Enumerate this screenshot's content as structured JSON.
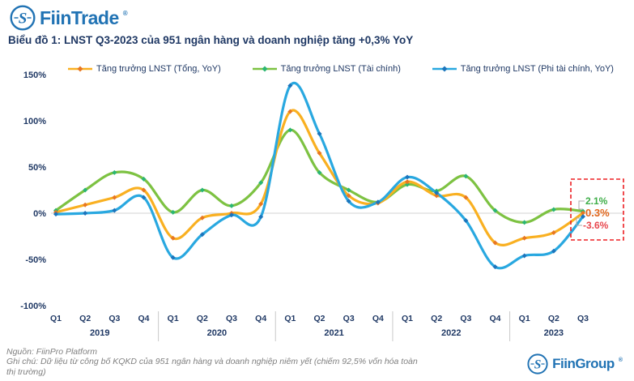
{
  "header": {
    "logo_text": "FiinTrade",
    "registered_mark": "®"
  },
  "title": "Biểu đồ 1: LNST Q3-2023 của 951 ngân hàng và doanh nghiệp tăng +0,3% YoY",
  "chart_data": {
    "type": "line",
    "title": "Biểu đồ 1: LNST Q3-2023 của 951 ngân hàng và doanh nghiệp tăng +0,3% YoY",
    "x_axis": {
      "year_groups": [
        {
          "year": "2019",
          "quarters": [
            "Q1",
            "Q2",
            "Q3",
            "Q4"
          ]
        },
        {
          "year": "2020",
          "quarters": [
            "Q1",
            "Q2",
            "Q3",
            "Q4"
          ]
        },
        {
          "year": "2021",
          "quarters": [
            "Q1",
            "Q2",
            "Q3",
            "Q4"
          ]
        },
        {
          "year": "2022",
          "quarters": [
            "Q1",
            "Q2",
            "Q3",
            "Q4"
          ]
        },
        {
          "year": "2023",
          "quarters": [
            "Q1",
            "Q2",
            "Q3"
          ]
        }
      ]
    },
    "ylabel": "",
    "xlabel": "",
    "ylim": [
      -100,
      150
    ],
    "yticks": [
      {
        "value": 150,
        "label": "150%"
      },
      {
        "value": 100,
        "label": "100%"
      },
      {
        "value": 50,
        "label": "50%"
      },
      {
        "value": 0,
        "label": "0%"
      },
      {
        "value": -50,
        "label": "-50%"
      },
      {
        "value": -100,
        "label": "-100%"
      }
    ],
    "grid": "horizontal zero line only",
    "legend_position": "top",
    "series": [
      {
        "name": "Tăng trưởng LNST (Tổng, YoY)",
        "color": "#F9B021",
        "marker_color": "#E87722",
        "values": [
          1,
          9,
          17,
          25,
          -27,
          -5,
          0,
          10,
          110,
          65,
          19,
          11,
          34,
          19,
          17,
          -32,
          -27,
          -21,
          0.3
        ]
      },
      {
        "name": "Tăng trưởng LNST (Tài chính)",
        "color": "#7DC242",
        "marker_color": "#2BB673",
        "values": [
          3,
          25,
          44,
          37,
          1,
          25,
          8,
          33,
          90,
          44,
          25,
          12,
          31,
          24,
          40,
          3,
          -10,
          4,
          2.1
        ]
      },
      {
        "name": "Tăng trưởng LNST (Phi tài chính, YoY)",
        "color": "#29A8E0",
        "marker_color": "#1C75BC",
        "values": [
          -1,
          0,
          3,
          17,
          -48,
          -23,
          -2,
          -4,
          138,
          86,
          13,
          12,
          39,
          22,
          -8,
          -58,
          -46,
          -41,
          -3.6
        ]
      }
    ],
    "annotation": {
      "box_color": "#ED2024",
      "connector_color": "#ABABAB",
      "labels": [
        {
          "text": "2.1%",
          "color": "#3FAE49"
        },
        {
          "text": "0.3%",
          "color": "#E0661B"
        },
        {
          "text": "-3.6%",
          "color": "#E8484F"
        }
      ]
    }
  },
  "footer": {
    "source": "Nguồn: FiinPro Platform",
    "note": "Ghi chú: Dữ liệu từ công bố KQKD của 951 ngân hàng và doanh nghiệp niêm yết (chiếm 92,5% vốn hóa toàn thị trường)",
    "logo_text": "FiinGroup",
    "registered_mark": "®"
  }
}
